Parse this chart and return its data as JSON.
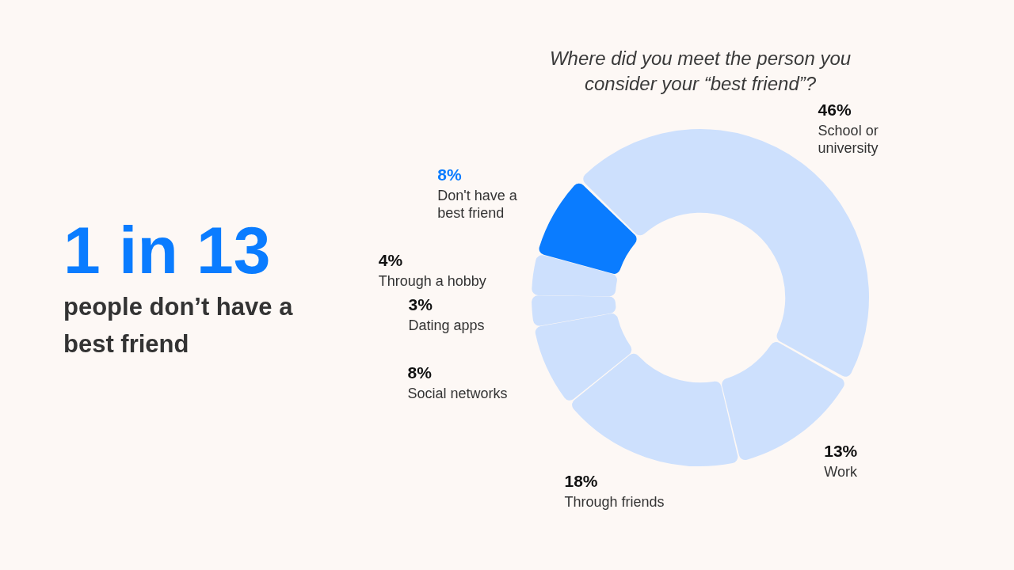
{
  "chart_data": {
    "type": "donut",
    "title": "Where did you meet the person you consider your “best friend”?",
    "categories": [
      "School or university",
      "Work",
      "Through friends",
      "Social networks",
      "Dating apps",
      "Through a hobby",
      "Don't have a best friend"
    ],
    "values": [
      46,
      13,
      18,
      8,
      3,
      4,
      8
    ],
    "colors": [
      "#cde0fd",
      "#cde0fd",
      "#cde0fd",
      "#cde0fd",
      "#cde0fd",
      "#cde0fd",
      "#0a7cff"
    ],
    "value_labels": [
      "46%",
      "13%",
      "18%",
      "8%",
      "3%",
      "4%",
      "8%"
    ],
    "annotations": [
      "1 in 13",
      "people don’t have a best friend"
    ],
    "legend": false
  }
}
